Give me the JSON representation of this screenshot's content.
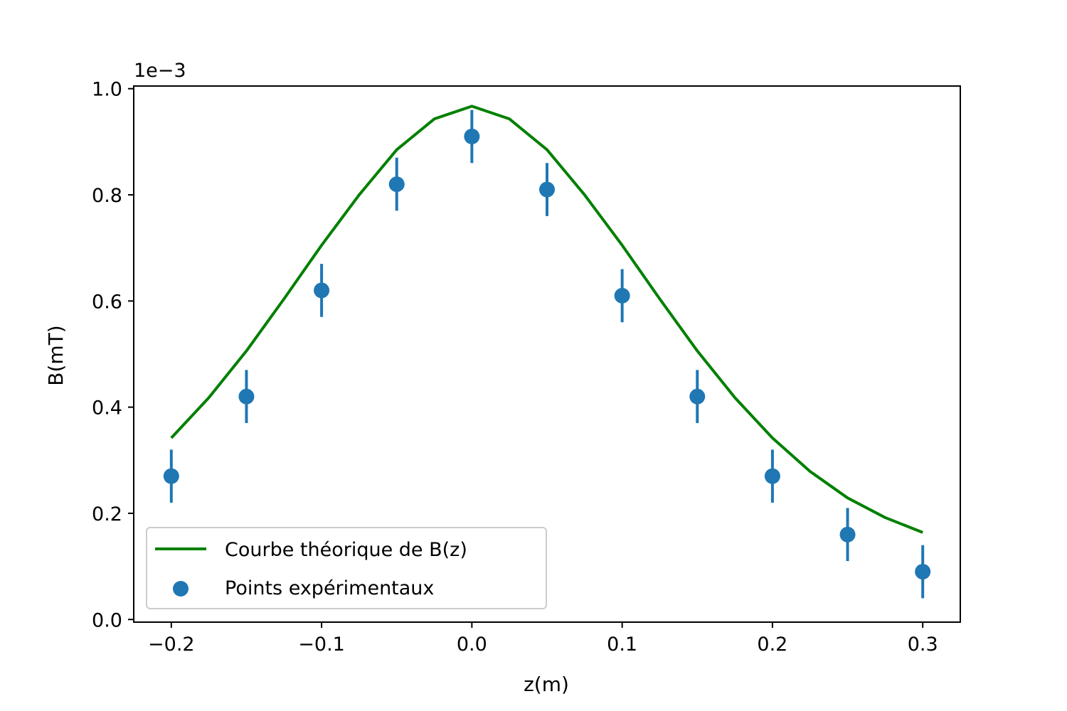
{
  "chart_data": {
    "type": "scatter",
    "title": "",
    "xlabel": "z(m)",
    "ylabel": "B(mT)",
    "y_offset_text": "1e−3",
    "xlim": [
      -0.225,
      0.325
    ],
    "ylim": [
      -0.005,
      1.005
    ],
    "y_scale_factor": 0.001,
    "x_ticks": [
      -0.2,
      -0.1,
      0.0,
      0.1,
      0.2,
      0.3
    ],
    "x_tick_labels": [
      "−0.2",
      "−0.1",
      "0.0",
      "0.1",
      "0.2",
      "0.3"
    ],
    "y_ticks": [
      0.0,
      0.2,
      0.4,
      0.6,
      0.8,
      1.0
    ],
    "y_tick_labels": [
      "0.0",
      "0.2",
      "0.4",
      "0.6",
      "0.8",
      "1.0"
    ],
    "grid": false,
    "legend_position": "lower-left",
    "series": [
      {
        "name": "Courbe théorique de B(z)",
        "kind": "line",
        "color": "#008000",
        "x": [
          -0.2,
          -0.175,
          -0.15,
          -0.125,
          -0.1,
          -0.075,
          -0.05,
          -0.025,
          0.0,
          0.025,
          0.05,
          0.075,
          0.1,
          0.125,
          0.15,
          0.175,
          0.2,
          0.225,
          0.25,
          0.275,
          0.3
        ],
        "y": [
          0.342,
          0.418,
          0.506,
          0.604,
          0.705,
          0.8,
          0.885,
          0.943,
          0.967,
          0.943,
          0.885,
          0.8,
          0.705,
          0.604,
          0.506,
          0.418,
          0.342,
          0.279,
          0.229,
          0.192,
          0.164
        ]
      },
      {
        "name": "Points expérimentaux",
        "kind": "errorbar",
        "color": "#1f77b4",
        "x": [
          -0.2,
          -0.15,
          -0.1,
          -0.05,
          0.0,
          0.05,
          0.1,
          0.15,
          0.2,
          0.25,
          0.3
        ],
        "y": [
          0.27,
          0.42,
          0.62,
          0.82,
          0.91,
          0.81,
          0.61,
          0.42,
          0.27,
          0.16,
          0.09
        ],
        "yerr": 0.05
      }
    ]
  }
}
